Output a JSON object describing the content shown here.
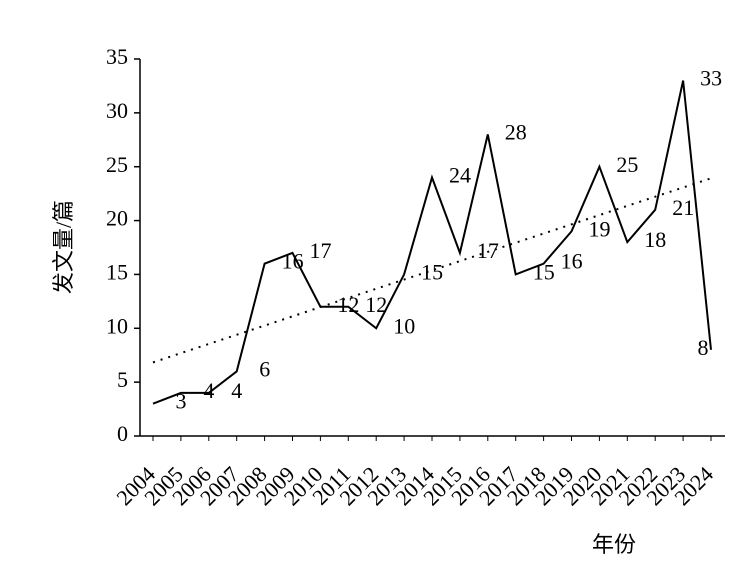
{
  "chart_data": {
    "type": "line",
    "x_label": "年份",
    "y_label": "发文量/篇",
    "categories": [
      "2004",
      "2005",
      "2006",
      "2007",
      "2008",
      "2009",
      "2010",
      "2011",
      "2012",
      "2013",
      "2014",
      "2015",
      "2016",
      "2017",
      "2018",
      "2019",
      "2020",
      "2021",
      "2022",
      "2023",
      "2024"
    ],
    "values": [
      3,
      4,
      4,
      6,
      16,
      17,
      12,
      12,
      10,
      15,
      24,
      17,
      28,
      15,
      16,
      19,
      25,
      18,
      21,
      33,
      8
    ],
    "color": "#000000",
    "trendline": "linear",
    "ylim": [
      0,
      35
    ],
    "yticks": [
      0,
      5,
      10,
      15,
      20,
      25,
      30,
      35
    ],
    "grid": false
  }
}
